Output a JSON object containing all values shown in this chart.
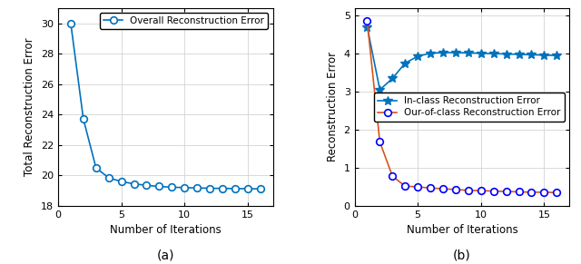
{
  "subplot_a": {
    "xlabel": "Number of Iterations",
    "ylabel": "Total Reconstruction Error",
    "xlim": [
      0,
      17
    ],
    "ylim": [
      18,
      31
    ],
    "yticks": [
      18,
      20,
      22,
      24,
      26,
      28,
      30
    ],
    "xticks": [
      0,
      5,
      10,
      15
    ],
    "label": "(a)",
    "legend_label": "Overall Reconstruction Error",
    "line_color": "#0072bd",
    "x": [
      1,
      2,
      3,
      4,
      5,
      6,
      7,
      8,
      9,
      10,
      11,
      12,
      13,
      14,
      15,
      16
    ],
    "y": [
      30.0,
      23.7,
      20.5,
      19.85,
      19.6,
      19.45,
      19.35,
      19.28,
      19.23,
      19.2,
      19.18,
      19.16,
      19.15,
      19.14,
      19.13,
      19.12
    ]
  },
  "subplot_b": {
    "xlabel": "Number of Iterations",
    "ylabel": "Reconstruction Error",
    "xlim": [
      0,
      17
    ],
    "ylim": [
      0,
      5.2
    ],
    "yticks": [
      0,
      1,
      2,
      3,
      4,
      5
    ],
    "xticks": [
      0,
      5,
      10,
      15
    ],
    "label": "(b)",
    "legend_label_inclass": "In-class Reconstruction Error",
    "legend_label_outclass": "Our-of-class Reconstruction Error",
    "line_color_inclass": "#0072bd",
    "line_color_outclass": "#d95319",
    "marker_color_outclass": "#0000ff",
    "x": [
      1,
      2,
      3,
      4,
      5,
      6,
      7,
      8,
      9,
      10,
      11,
      12,
      13,
      14,
      15,
      16
    ],
    "y_inclass": [
      4.7,
      3.05,
      3.35,
      3.75,
      3.93,
      4.01,
      4.03,
      4.03,
      4.02,
      4.01,
      4.0,
      3.99,
      3.98,
      3.97,
      3.96,
      3.95
    ],
    "y_outclass": [
      4.85,
      1.68,
      0.78,
      0.52,
      0.5,
      0.47,
      0.45,
      0.43,
      0.41,
      0.4,
      0.39,
      0.38,
      0.37,
      0.36,
      0.36,
      0.35
    ]
  },
  "background_color": "#ffffff",
  "grid_color": "#d3d3d3",
  "label_fontsize": 8.5,
  "tick_fontsize": 8,
  "legend_fontsize": 7.5,
  "sublabel_fontsize": 10
}
